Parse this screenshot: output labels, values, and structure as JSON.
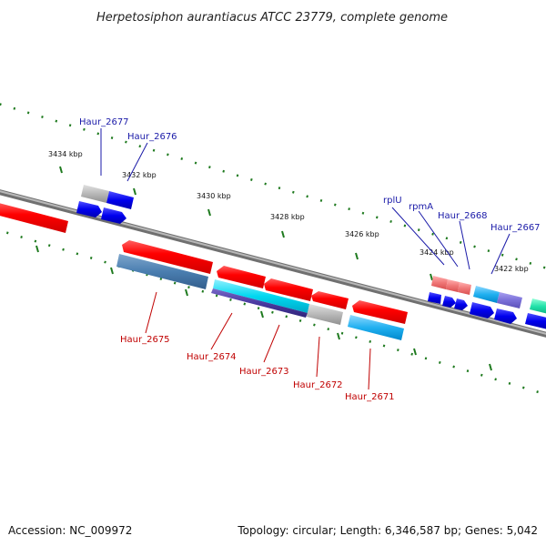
{
  "title": "Herpetosiphon aurantiacus ATCC 23779, complete genome",
  "ruler_ticks": [
    "3434 kbp",
    "3432 kbp",
    "3430 kbp",
    "3428 kbp",
    "3426 kbp",
    "3424 kbp",
    "3422 kbp"
  ],
  "gene_labels_top": [
    "Haur_2677",
    "Haur_2676",
    "rplU",
    "rpmA",
    "Haur_2668",
    "Haur_2667"
  ],
  "gene_labels_bottom": [
    "Haur_2675",
    "Haur_2674",
    "Haur_2673",
    "Haur_2672",
    "Haur_2671"
  ],
  "footer": {
    "accession": "Accession: NC_009972",
    "summary": "Topology: circular; Length: 6,346,587 bp; Genes: 5,042"
  },
  "colors": {
    "backbone": "#808080",
    "tick_green": "#1f7a1f",
    "forward_gene": "#0000e0",
    "reverse_gene": "#ee1111",
    "label_blue": "#1a1aa8",
    "label_red": "#c00000"
  }
}
